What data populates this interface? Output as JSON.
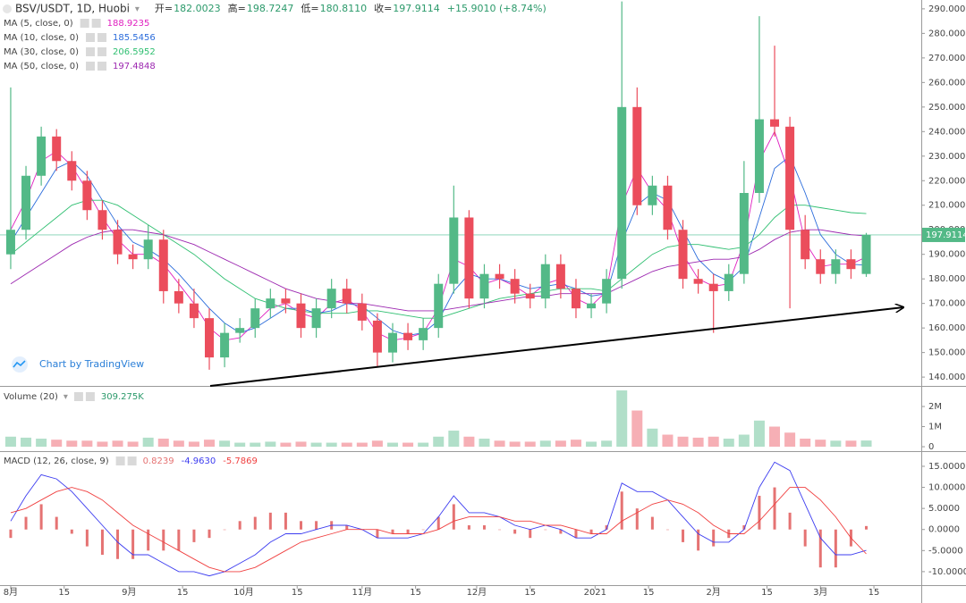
{
  "chart_data": [
    {
      "type": "candlestick",
      "title": "BSV/USDT, 1D, Huobi",
      "ohlc_header": [
        {
          "label": "开=",
          "text": "182.0023"
        },
        {
          "label": "高=",
          "text": "198.7247"
        },
        {
          "label": "低=",
          "text": "180.8110"
        },
        {
          "label": "收=",
          "text": "197.9114"
        }
      ],
      "change_label": "+15.9010 (+8.74%)",
      "watermark": "Chart by TradingView",
      "up_color": "#53b987",
      "down_color": "#eb4d5c",
      "x": [
        0,
        4,
        8,
        12,
        16,
        20,
        24,
        28,
        32,
        36,
        40,
        44,
        48,
        52,
        56,
        60,
        64,
        68,
        72,
        76,
        80,
        84,
        88,
        92,
        96,
        100,
        104,
        108,
        112,
        116,
        120,
        124,
        128,
        132,
        136,
        140,
        144,
        148,
        152,
        156,
        160,
        164,
        168,
        172,
        176,
        180,
        184,
        188,
        192,
        196,
        200,
        204,
        208,
        212,
        216,
        220,
        224
      ],
      "open": [
        190,
        200,
        222,
        238,
        228,
        220,
        208,
        200,
        190,
        188,
        196,
        175,
        170,
        164,
        148,
        158,
        160,
        168,
        172,
        170,
        160,
        168,
        176,
        170,
        163,
        150,
        158,
        155,
        160,
        178,
        205,
        172,
        182,
        180,
        174,
        172,
        186,
        176,
        168,
        170,
        180,
        250,
        210,
        218,
        200,
        180,
        178,
        175,
        182,
        215,
        245,
        242,
        200,
        188,
        182,
        188,
        182.0023
      ],
      "high": [
        258,
        226,
        242,
        241,
        232,
        224,
        212,
        204,
        194,
        202,
        200,
        180,
        176,
        168,
        162,
        164,
        172,
        176,
        176,
        174,
        172,
        180,
        180,
        174,
        166,
        162,
        162,
        164,
        182,
        218,
        208,
        186,
        186,
        184,
        178,
        190,
        190,
        180,
        174,
        184,
        293,
        258,
        222,
        222,
        204,
        184,
        182,
        186,
        228,
        287,
        275,
        246,
        206,
        192,
        192,
        192,
        198.7247
      ],
      "low": [
        184,
        196,
        218,
        224,
        216,
        204,
        196,
        186,
        184,
        184,
        170,
        166,
        160,
        143,
        144,
        154,
        156,
        164,
        166,
        156,
        156,
        164,
        166,
        159,
        144,
        146,
        151,
        151,
        156,
        174,
        168,
        168,
        176,
        170,
        168,
        168,
        172,
        164,
        164,
        166,
        176,
        206,
        206,
        196,
        176,
        174,
        158,
        171,
        178,
        211,
        238,
        168,
        184,
        178,
        178,
        180,
        180.811
      ],
      "close": [
        200,
        222,
        238,
        228,
        220,
        208,
        200,
        190,
        188,
        196,
        175,
        170,
        164,
        148,
        158,
        160,
        168,
        172,
        170,
        160,
        168,
        176,
        170,
        163,
        150,
        158,
        155,
        160,
        178,
        205,
        172,
        182,
        180,
        174,
        172,
        186,
        176,
        168,
        170,
        180,
        250,
        210,
        218,
        200,
        180,
        178,
        175,
        182,
        215,
        245,
        242,
        200,
        188,
        182,
        188,
        184,
        197.9114
      ],
      "series": [
        {
          "name": "MA (5, close, 0)",
          "color": "#e020c0",
          "values": [
            200,
            212,
            228,
            232,
            226,
            216,
            205,
            196,
            190,
            190,
            186,
            178,
            170,
            160,
            155,
            156,
            162,
            168,
            170,
            166,
            164,
            170,
            172,
            167,
            158,
            155,
            156,
            158,
            168,
            188,
            185,
            178,
            180,
            177,
            173,
            178,
            180,
            172,
            169,
            175,
            210,
            225,
            215,
            208,
            190,
            180,
            177,
            178,
            195,
            228,
            240,
            222,
            195,
            185,
            186,
            186,
            188.9235
          ]
        },
        {
          "name": "MA (10, close, 0)",
          "color": "#2b6cdb",
          "values": [
            195,
            205,
            215,
            225,
            228,
            222,
            212,
            202,
            195,
            192,
            188,
            182,
            175,
            168,
            162,
            158,
            160,
            164,
            168,
            168,
            166,
            167,
            170,
            169,
            164,
            159,
            157,
            158,
            163,
            175,
            182,
            180,
            180,
            178,
            176,
            177,
            178,
            176,
            173,
            174,
            195,
            210,
            215,
            212,
            200,
            188,
            182,
            179,
            185,
            205,
            225,
            230,
            215,
            198,
            190,
            186,
            185.5456
          ]
        },
        {
          "name": "MA (30, close, 0)",
          "color": "#2fbf71",
          "values": [
            190,
            195,
            200,
            205,
            210,
            212,
            212,
            210,
            206,
            202,
            198,
            194,
            190,
            185,
            180,
            176,
            172,
            170,
            168,
            167,
            166,
            166,
            166,
            167,
            167,
            166,
            165,
            164,
            164,
            166,
            168,
            170,
            172,
            173,
            174,
            175,
            176,
            176,
            176,
            175,
            180,
            185,
            190,
            193,
            194,
            194,
            193,
            192,
            193,
            198,
            205,
            210,
            210,
            209,
            208,
            207,
            206.5952
          ]
        },
        {
          "name": "MA (50, close, 0)",
          "color": "#9c27b0",
          "values": [
            178,
            182,
            186,
            190,
            194,
            197,
            199,
            200,
            200,
            199,
            198,
            196,
            194,
            191,
            188,
            185,
            182,
            179,
            176,
            174,
            172,
            171,
            170,
            170,
            169,
            168,
            167,
            167,
            167,
            168,
            169,
            170,
            171,
            172,
            173,
            173,
            174,
            174,
            174,
            174,
            177,
            180,
            183,
            185,
            186,
            187,
            188,
            188,
            189,
            192,
            196,
            199,
            200,
            200,
            199,
            198,
            197.4848
          ]
        }
      ],
      "xlim": [
        -2.8,
        238.4
      ],
      "xticks": [
        {
          "value": 0,
          "label": "8月"
        },
        {
          "value": 14,
          "label": "15"
        },
        {
          "value": 31,
          "label": "9月"
        },
        {
          "value": 45,
          "label": "15"
        },
        {
          "value": 61,
          "label": "10月"
        },
        {
          "value": 75,
          "label": "15"
        },
        {
          "value": 92,
          "label": "11月"
        },
        {
          "value": 106,
          "label": "15"
        },
        {
          "value": 122,
          "label": "12月"
        },
        {
          "value": 136,
          "label": "15"
        },
        {
          "value": 153,
          "label": "2021"
        },
        {
          "value": 167,
          "label": "15"
        },
        {
          "value": 184,
          "label": "2月"
        },
        {
          "value": 198,
          "label": "15"
        },
        {
          "value": 212,
          "label": "3月"
        },
        {
          "value": 226,
          "label": "15"
        }
      ],
      "ylim": [
        136.4,
        293.6
      ],
      "yticks": [
        {
          "value": 140,
          "label": "140.0000"
        },
        {
          "value": 150,
          "label": "150.0000"
        },
        {
          "value": 160,
          "label": "160.0000"
        },
        {
          "value": 170,
          "label": "170.0000"
        },
        {
          "value": 180,
          "label": "180.0000"
        },
        {
          "value": 190,
          "label": "190.0000"
        },
        {
          "value": 200,
          "label": "200.0000"
        },
        {
          "value": 210,
          "label": "210.0000"
        },
        {
          "value": 220,
          "label": "220.0000"
        },
        {
          "value": 230,
          "label": "230.0000"
        },
        {
          "value": 240,
          "label": "240.0000"
        },
        {
          "value": 250,
          "label": "250.0000"
        },
        {
          "value": 260,
          "label": "260.0000"
        },
        {
          "value": 270,
          "label": "270.0000"
        },
        {
          "value": 280,
          "label": "280.0000"
        },
        {
          "value": 290,
          "label": "290.0000"
        }
      ]
    },
    {
      "type": "volume",
      "title": "Volume (20)",
      "value_label": "309.275K",
      "values": [
        500000,
        450000,
        400000,
        350000,
        300000,
        300000,
        250000,
        300000,
        250000,
        450000,
        400000,
        300000,
        250000,
        350000,
        300000,
        200000,
        200000,
        250000,
        200000,
        250000,
        200000,
        200000,
        200000,
        200000,
        300000,
        200000,
        200000,
        200000,
        500000,
        800000,
        500000,
        400000,
        300000,
        250000,
        250000,
        300000,
        300000,
        350000,
        250000,
        300000,
        2800000,
        1800000,
        900000,
        600000,
        500000,
        450000,
        500000,
        400000,
        600000,
        1300000,
        1000000,
        700000,
        400000,
        350000,
        300000,
        300000,
        309275
      ],
      "ylim": [
        -220000,
        2890000
      ],
      "yticks": [
        0,
        {
          "value": 1000000,
          "label": "1M"
        },
        {
          "value": 2000000,
          "label": "2M"
        }
      ]
    },
    {
      "type": "macd",
      "title": "MACD (12, 26, close, 9)",
      "last_labels": [
        "0.8239",
        "-4.9630",
        "-5.7869"
      ],
      "series": [
        {
          "color": "#e57373",
          "values": [
            -2,
            3,
            6,
            3,
            -1,
            -4,
            -6,
            -7,
            -7,
            -5,
            -5,
            -5,
            -3,
            -2,
            0,
            2,
            3,
            4,
            4,
            2,
            2,
            2,
            1,
            0,
            -2,
            -1,
            -1,
            0,
            3,
            6,
            1,
            1,
            0,
            -1,
            -2,
            0,
            -1,
            -2,
            -1,
            1,
            9,
            5,
            3,
            0,
            -3,
            -5,
            -4,
            -2,
            1,
            8,
            10,
            4,
            -4,
            -9,
            -9,
            -4,
            0.8239
          ]
        },
        {
          "color": "#3c3cf0",
          "values": [
            2,
            8,
            13,
            12,
            9,
            5,
            1,
            -3,
            -6,
            -6,
            -8,
            -10,
            -10,
            -11,
            -10,
            -8,
            -6,
            -3,
            -1,
            -1,
            0,
            1,
            1,
            0,
            -2,
            -2,
            -2,
            -1,
            3,
            8,
            4,
            4,
            3,
            1,
            0,
            1,
            0,
            -2,
            -2,
            0,
            11,
            9,
            9,
            7,
            3,
            -1,
            -3,
            -3,
            0,
            10,
            16,
            14,
            6,
            -2,
            -6,
            -6,
            -4.963
          ]
        },
        {
          "color": "#f04040",
          "values": [
            4,
            5,
            7,
            9,
            10,
            9,
            7,
            4,
            1,
            -1,
            -3,
            -5,
            -7,
            -9,
            -10,
            -10,
            -9,
            -7,
            -5,
            -3,
            -2,
            -1,
            0,
            0,
            0,
            -1,
            -1,
            -1,
            0,
            2,
            3,
            3,
            3,
            2,
            2,
            1,
            1,
            0,
            -1,
            -1,
            2,
            4,
            6,
            7,
            6,
            4,
            1,
            -1,
            -1,
            2,
            6,
            10,
            10,
            7,
            3,
            -2,
            -5.7869
          ]
        }
      ],
      "ylim": [
        -13.2,
        18.6
      ],
      "yticks": [
        {
          "value": -10,
          "label": "-10.0000"
        },
        {
          "value": -5,
          "label": "-5.0000"
        },
        {
          "value": 0,
          "label": "0.0000"
        },
        {
          "value": 5,
          "label": "5.0000"
        },
        {
          "value": 10,
          "label": "10.0000"
        },
        {
          "value": 15,
          "label": "15.0000"
        }
      ]
    }
  ]
}
